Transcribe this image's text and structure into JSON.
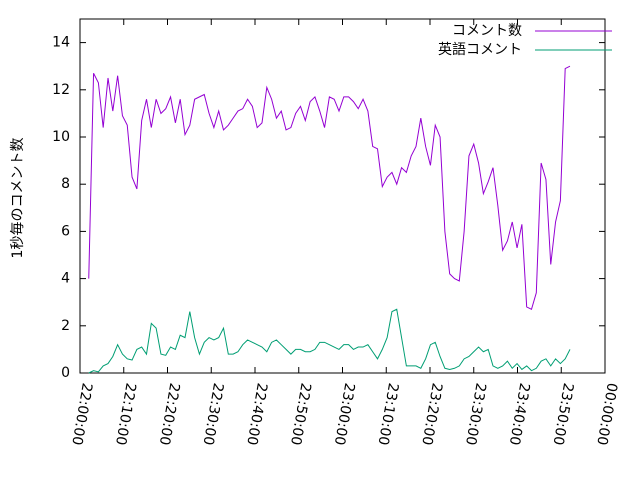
{
  "chart_data": {
    "type": "line",
    "ylabel": "1秒毎のコメント数",
    "xlim": [
      "22:00:00",
      "00:00:00"
    ],
    "xticks": [
      "22:00:00",
      "22:10:00",
      "22:20:00",
      "22:30:00",
      "22:40:00",
      "22:50:00",
      "23:00:00",
      "23:10:00",
      "23:20:00",
      "23:30:00",
      "23:40:00",
      "23:50:00",
      "00:00:00"
    ],
    "ylim": [
      0,
      15
    ],
    "yticks": [
      0,
      2,
      4,
      6,
      8,
      10,
      12,
      14
    ],
    "legend": "top-right",
    "grid": false,
    "x": [
      "22:02:00",
      "22:03:06",
      "22:04:12",
      "22:05:18",
      "22:06:24",
      "22:07:30",
      "22:08:36",
      "22:09:42",
      "22:10:48",
      "22:11:54",
      "22:13:00",
      "22:14:06",
      "22:15:12",
      "22:16:18",
      "22:17:24",
      "22:18:30",
      "22:19:36",
      "22:20:42",
      "22:21:48",
      "22:22:54",
      "22:24:00",
      "22:25:06",
      "22:26:12",
      "22:27:18",
      "22:28:24",
      "22:29:30",
      "22:30:36",
      "22:31:42",
      "22:32:48",
      "22:33:54",
      "22:35:00",
      "22:36:06",
      "22:37:12",
      "22:38:18",
      "22:39:24",
      "22:40:30",
      "22:41:36",
      "22:42:42",
      "22:43:48",
      "22:44:54",
      "22:46:00",
      "22:47:06",
      "22:48:12",
      "22:49:18",
      "22:50:24",
      "22:51:30",
      "22:52:36",
      "22:53:42",
      "22:54:48",
      "22:55:54",
      "22:57:00",
      "22:58:06",
      "22:59:12",
      "23:00:18",
      "23:01:24",
      "23:02:30",
      "23:03:36",
      "23:04:42",
      "23:05:48",
      "23:06:54",
      "23:08:00",
      "23:09:06",
      "23:10:12",
      "23:11:18",
      "23:12:24",
      "23:13:30",
      "23:14:36",
      "23:15:42",
      "23:16:48",
      "23:17:54",
      "23:19:00",
      "23:20:06",
      "23:21:12",
      "23:22:18",
      "23:23:24",
      "23:24:30",
      "23:25:36",
      "23:26:42",
      "23:27:48",
      "23:28:54",
      "23:30:00",
      "23:31:06",
      "23:32:12",
      "23:33:18",
      "23:34:24",
      "23:35:30",
      "23:36:36",
      "23:37:42",
      "23:38:48",
      "23:39:54",
      "23:41:00",
      "23:42:06",
      "23:43:12",
      "23:44:18",
      "23:45:24",
      "23:46:30",
      "23:47:36",
      "23:48:42",
      "23:49:48",
      "23:50:54",
      "23:52:00"
    ],
    "series": [
      {
        "name": "コメント数",
        "color": "#9400d3",
        "values": [
          4.0,
          12.7,
          12.3,
          10.4,
          12.5,
          11.1,
          12.6,
          10.9,
          10.5,
          8.3,
          7.8,
          10.7,
          11.6,
          10.4,
          11.6,
          11.0,
          11.2,
          11.7,
          10.6,
          11.6,
          10.1,
          10.5,
          11.6,
          11.7,
          11.8,
          11.0,
          10.4,
          11.1,
          10.3,
          10.5,
          10.8,
          11.1,
          11.2,
          11.6,
          11.3,
          10.4,
          10.6,
          12.1,
          11.6,
          10.8,
          11.1,
          10.3,
          10.4,
          11.0,
          11.3,
          10.7,
          11.5,
          11.7,
          11.1,
          10.4,
          11.7,
          11.6,
          11.1,
          11.7,
          11.7,
          11.5,
          11.2,
          11.6,
          11.1,
          9.6,
          9.5,
          7.9,
          8.3,
          8.5,
          8.0,
          8.7,
          8.5,
          9.2,
          9.6,
          10.8,
          9.6,
          8.8,
          10.5,
          10.0,
          6.0,
          4.2,
          4.0,
          3.9,
          6.0,
          9.2,
          9.7,
          8.9,
          7.6,
          8.1,
          8.7,
          7.1,
          5.2,
          5.6,
          6.4,
          5.3,
          6.3,
          2.8,
          2.7,
          3.4,
          8.9,
          8.2,
          4.6,
          6.4,
          7.3,
          12.9,
          13.0
        ]
      },
      {
        "name": "英語コメント",
        "color": "#009e73",
        "values": [
          0,
          0.1,
          0.05,
          0.3,
          0.4,
          0.7,
          1.2,
          0.8,
          0.6,
          0.55,
          1.0,
          1.1,
          0.8,
          2.1,
          1.9,
          0.8,
          0.75,
          1.1,
          1.0,
          1.6,
          1.5,
          2.6,
          1.5,
          0.8,
          1.3,
          1.5,
          1.4,
          1.5,
          1.9,
          0.8,
          0.8,
          0.9,
          1.2,
          1.4,
          1.3,
          1.2,
          1.1,
          0.9,
          1.3,
          1.4,
          1.2,
          1.0,
          0.8,
          1.0,
          1.0,
          0.9,
          0.9,
          1.0,
          1.3,
          1.3,
          1.2,
          1.1,
          1.0,
          1.2,
          1.2,
          1.0,
          1.1,
          1.1,
          1.2,
          0.9,
          0.6,
          1.0,
          1.5,
          2.6,
          2.7,
          1.5,
          0.3,
          0.3,
          0.3,
          0.2,
          0.6,
          1.2,
          1.3,
          0.7,
          0.2,
          0.15,
          0.2,
          0.3,
          0.6,
          0.7,
          0.9,
          1.1,
          0.9,
          1.0,
          0.3,
          0.2,
          0.3,
          0.5,
          0.2,
          0.4,
          0.15,
          0.3,
          0.1,
          0.2,
          0.5,
          0.6,
          0.3,
          0.6,
          0.4,
          0.6,
          1.0
        ]
      }
    ]
  }
}
